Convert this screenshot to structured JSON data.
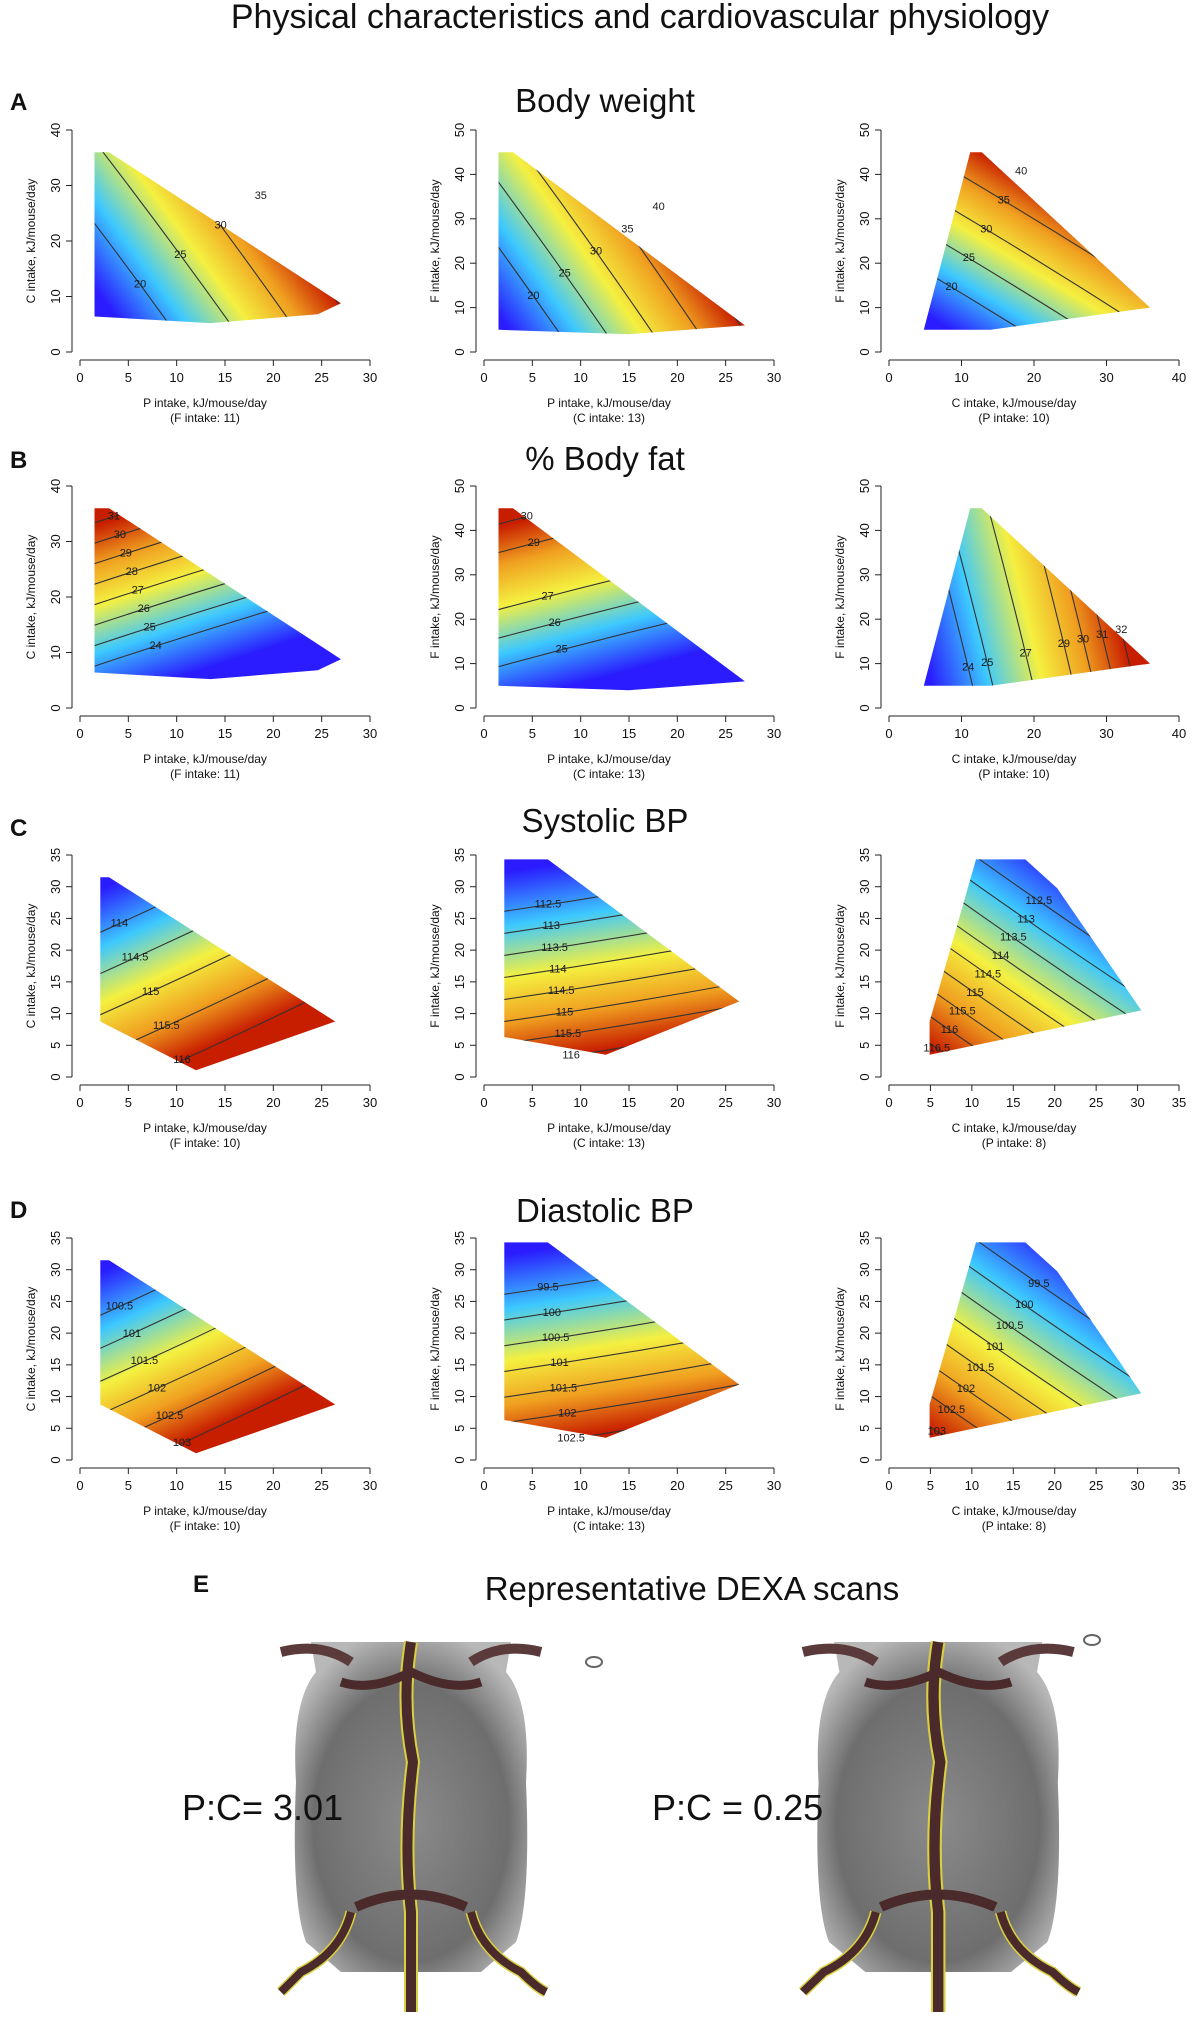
{
  "title": "Physical characteristics and cardiovascular physiology",
  "panels": [
    {
      "letter": "A",
      "title": "Body weight"
    },
    {
      "letter": "B",
      "title": "% Body fat"
    },
    {
      "letter": "C",
      "title": "Systolic BP"
    },
    {
      "letter": "D",
      "title": "Diastolic BP"
    },
    {
      "letter": "E",
      "title": "Representative DEXA scans",
      "labels": [
        "P:C= 3.01",
        "P:C = 0.25"
      ]
    }
  ],
  "chart_data": [
    {
      "type": "contour",
      "xlabel": "P intake, kJ/mouse/day",
      "note": "(F intake: 11)",
      "ylabel": "C intake, kJ/mouse/day",
      "xlim": [
        0,
        30
      ],
      "xticks": [
        0,
        5,
        10,
        15,
        20,
        25,
        30
      ],
      "ylim": [
        0,
        40
      ],
      "yticks": [
        0,
        10,
        20,
        30,
        40
      ],
      "levels": [
        20,
        25,
        30,
        35
      ]
    },
    {
      "type": "contour",
      "xlabel": "P intake, kJ/mouse/day",
      "note": "(C intake: 13)",
      "ylabel": "F intake, kJ/mouse/day",
      "xlim": [
        0,
        30
      ],
      "xticks": [
        0,
        5,
        10,
        15,
        20,
        25,
        30
      ],
      "ylim": [
        0,
        50
      ],
      "yticks": [
        0,
        10,
        20,
        30,
        40,
        50
      ],
      "levels": [
        20,
        25,
        30,
        35,
        40
      ]
    },
    {
      "type": "contour",
      "xlabel": "C intake, kJ/mouse/day",
      "note": "(P intake: 10)",
      "ylabel": "F intake, kJ/mouse/day",
      "xlim": [
        0,
        40
      ],
      "xticks": [
        0,
        10,
        20,
        30,
        40
      ],
      "ylim": [
        0,
        50
      ],
      "yticks": [
        0,
        10,
        20,
        30,
        40,
        50
      ],
      "levels": [
        20,
        25,
        30,
        35,
        40
      ]
    },
    {
      "type": "contour",
      "xlabel": "P intake, kJ/mouse/day",
      "note": "(F intake: 11)",
      "ylabel": "C intake, kJ/mouse/day",
      "xlim": [
        0,
        30
      ],
      "xticks": [
        0,
        5,
        10,
        15,
        20,
        25,
        30
      ],
      "ylim": [
        0,
        40
      ],
      "yticks": [
        0,
        10,
        20,
        30,
        40
      ],
      "levels": [
        24,
        25,
        26,
        27,
        28,
        29,
        30,
        31
      ]
    },
    {
      "type": "contour",
      "xlabel": "P intake, kJ/mouse/day",
      "note": "(C intake: 13)",
      "ylabel": "F intake, kJ/mouse/day",
      "xlim": [
        0,
        30
      ],
      "xticks": [
        0,
        5,
        10,
        15,
        20,
        25,
        30
      ],
      "ylim": [
        0,
        50
      ],
      "yticks": [
        0,
        10,
        20,
        30,
        40,
        50
      ],
      "levels": [
        25,
        26,
        27,
        29,
        30
      ]
    },
    {
      "type": "contour",
      "xlabel": "C intake, kJ/mouse/day",
      "note": "(P intake: 10)",
      "ylabel": "F intake, kJ/mouse/day",
      "xlim": [
        0,
        40
      ],
      "xticks": [
        0,
        10,
        20,
        30,
        40
      ],
      "ylim": [
        0,
        50
      ],
      "yticks": [
        0,
        10,
        20,
        30,
        40,
        50
      ],
      "levels": [
        24,
        25,
        27,
        29,
        30,
        31,
        32
      ]
    },
    {
      "type": "contour",
      "xlabel": "P intake, kJ/mouse/day",
      "note": "(F intake: 10)",
      "ylabel": "C intake, kJ/mouse/day",
      "xlim": [
        0,
        30
      ],
      "xticks": [
        0,
        5,
        10,
        15,
        20,
        25,
        30
      ],
      "ylim": [
        0,
        35
      ],
      "yticks": [
        0,
        5,
        10,
        15,
        20,
        25,
        30,
        35
      ],
      "levels": [
        114,
        114.5,
        115,
        115.5,
        116
      ]
    },
    {
      "type": "contour",
      "xlabel": "P intake, kJ/mouse/day",
      "note": "(C intake: 13)",
      "ylabel": "F intake, kJ/mouse/day",
      "xlim": [
        0,
        30
      ],
      "xticks": [
        0,
        5,
        10,
        15,
        20,
        25,
        30
      ],
      "ylim": [
        0,
        35
      ],
      "yticks": [
        0,
        5,
        10,
        15,
        20,
        25,
        30,
        35
      ],
      "levels": [
        112.5,
        113,
        113.5,
        114,
        114.5,
        115,
        115.5,
        116
      ]
    },
    {
      "type": "contour",
      "xlabel": "C intake, kJ/mouse/day",
      "note": "(P intake: 8)",
      "ylabel": "F intake, kJ/mouse/day",
      "xlim": [
        0,
        35
      ],
      "xticks": [
        0,
        5,
        10,
        15,
        20,
        25,
        30,
        35
      ],
      "ylim": [
        0,
        35
      ],
      "yticks": [
        0,
        5,
        10,
        15,
        20,
        25,
        30,
        35
      ],
      "levels": [
        112.5,
        113,
        113.5,
        114,
        114.5,
        115,
        115.5,
        116,
        116.5
      ]
    },
    {
      "type": "contour",
      "xlabel": "P intake, kJ/mouse/day",
      "note": "(F intake: 10)",
      "ylabel": "C intake, kJ/mouse/day",
      "xlim": [
        0,
        30
      ],
      "xticks": [
        0,
        5,
        10,
        15,
        20,
        25,
        30
      ],
      "ylim": [
        0,
        35
      ],
      "yticks": [
        0,
        5,
        10,
        15,
        20,
        25,
        30,
        35
      ],
      "levels": [
        100.5,
        101,
        101.5,
        102,
        102.5,
        103
      ]
    },
    {
      "type": "contour",
      "xlabel": "P intake, kJ/mouse/day",
      "note": "(C intake: 13)",
      "ylabel": "F intake, kJ/mouse/day",
      "xlim": [
        0,
        30
      ],
      "xticks": [
        0,
        5,
        10,
        15,
        20,
        25,
        30
      ],
      "ylim": [
        0,
        35
      ],
      "yticks": [
        0,
        5,
        10,
        15,
        20,
        25,
        30,
        35
      ],
      "levels": [
        99.5,
        100,
        100.5,
        101,
        101.5,
        102,
        102.5
      ]
    },
    {
      "type": "contour",
      "xlabel": "C intake, kJ/mouse/day",
      "note": "(P intake: 8)",
      "ylabel": "F intake, kJ/mouse/day",
      "xlim": [
        0,
        35
      ],
      "xticks": [
        0,
        5,
        10,
        15,
        20,
        25,
        30,
        35
      ],
      "ylim": [
        0,
        35
      ],
      "yticks": [
        0,
        5,
        10,
        15,
        20,
        25,
        30,
        35
      ],
      "levels": [
        99.5,
        100,
        100.5,
        101,
        101.5,
        102,
        102.5,
        103
      ]
    }
  ]
}
